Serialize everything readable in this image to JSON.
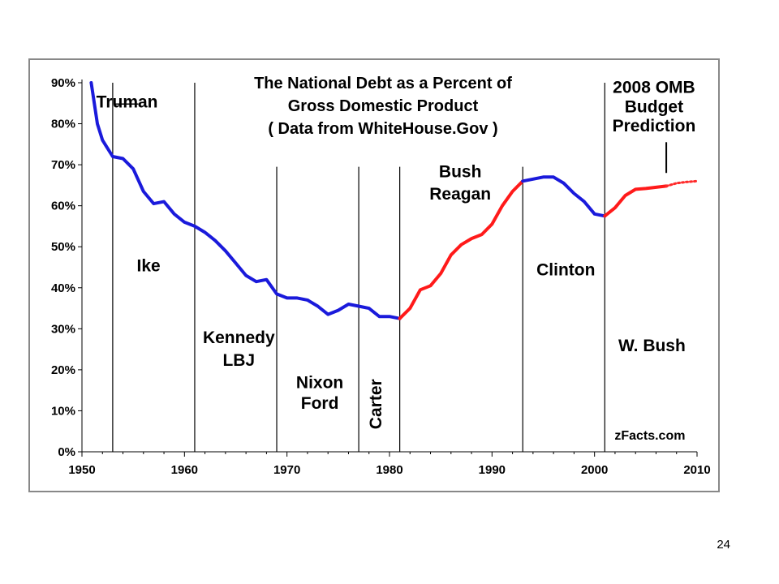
{
  "slide": {
    "page_number": "24"
  },
  "colors": {
    "actual_blue": "#1a1adb",
    "actual_red": "#ff1a1a",
    "projection_red": "#ff2a2a"
  },
  "chart_data": {
    "type": "line",
    "title_lines": [
      "The National Debt as a Percent of",
      "Gross Domestic Product",
      "( Data from WhiteHouse.Gov )"
    ],
    "xlim": [
      1950,
      2010
    ],
    "ylim": [
      0,
      90
    ],
    "x_ticks": [
      1950,
      1960,
      1970,
      1980,
      1990,
      2000,
      2010
    ],
    "y_ticks": [
      {
        "value": 0,
        "label": "0%"
      },
      {
        "value": 10,
        "label": "10%"
      },
      {
        "value": 20,
        "label": "20%"
      },
      {
        "value": 30,
        "label": "30%"
      },
      {
        "value": 40,
        "label": "40%"
      },
      {
        "value": 50,
        "label": "50%"
      },
      {
        "value": 60,
        "label": "60%"
      },
      {
        "value": 70,
        "label": "70%"
      },
      {
        "value": 80,
        "label": "80%"
      },
      {
        "value": 90,
        "label": "90%"
      }
    ],
    "grid": false,
    "series": [
      {
        "party": "democratic-blue",
        "color": "#1a1adb",
        "style": "solid",
        "x": [
          1950.9,
          1951.5,
          1952,
          1953,
          1954,
          1955,
          1956,
          1957,
          1958,
          1959,
          1960,
          1961,
          1962,
          1963,
          1964,
          1965,
          1966,
          1967,
          1968,
          1969,
          1970,
          1971,
          1972,
          1973,
          1974,
          1975,
          1976,
          1977,
          1978,
          1979,
          1980,
          1981
        ],
        "y": [
          90,
          80,
          76,
          72,
          71.5,
          69,
          63.5,
          60.5,
          61,
          58,
          56,
          55,
          53.5,
          51.5,
          49,
          46,
          43,
          41.5,
          42,
          38.5,
          37.5,
          37.5,
          37,
          35.5,
          33.5,
          34.5,
          36,
          35.5,
          35,
          33,
          33,
          32.5
        ]
      },
      {
        "party": "republican-red",
        "color": "#ff1a1a",
        "style": "solid",
        "x": [
          1981,
          1982,
          1983,
          1984,
          1985,
          1986,
          1987,
          1988,
          1989,
          1990,
          1991,
          1992,
          1993
        ],
        "y": [
          32.5,
          35,
          39.5,
          40.5,
          43.5,
          48,
          50.5,
          52,
          53,
          55.5,
          60,
          63.5,
          66
        ]
      },
      {
        "party": "democratic-blue",
        "color": "#1a1adb",
        "style": "solid",
        "x": [
          1993,
          1994,
          1995,
          1996,
          1997,
          1998,
          1999,
          2000,
          2001
        ],
        "y": [
          66,
          66.5,
          67,
          67,
          65.5,
          63,
          61,
          58,
          57.5
        ]
      },
      {
        "party": "republican-red",
        "color": "#ff1a1a",
        "style": "solid",
        "x": [
          2001,
          2002,
          2003,
          2004,
          2005,
          2006,
          2007
        ],
        "y": [
          57.5,
          59.5,
          62.5,
          64,
          64.2,
          64.5,
          64.8
        ]
      },
      {
        "party": "projection",
        "color": "#ff2a2a",
        "style": "dotted",
        "x": [
          2007,
          2008,
          2009,
          2010
        ],
        "y": [
          64.8,
          65.5,
          65.8,
          66
        ]
      }
    ],
    "term_dividers": [
      1953,
      1961,
      1969,
      1977,
      1981,
      1993,
      2001
    ],
    "president_labels": [
      {
        "text": "Truman",
        "x": 1954.4,
        "y": 84
      },
      {
        "text": "Ike",
        "x": 1956.5,
        "y": 44
      },
      {
        "text": "Kennedy",
        "x": 1965.3,
        "y": 26.5
      },
      {
        "text": "LBJ",
        "x": 1965.3,
        "y": 21
      },
      {
        "text": "Nixon",
        "x": 1973.2,
        "y": 15.5
      },
      {
        "text": "Ford",
        "x": 1973.2,
        "y": 10.5
      },
      {
        "text": "Carter",
        "x": 1979.2,
        "y": 5.5,
        "rotated": true
      },
      {
        "text": "Bush",
        "x": 1986.9,
        "y": 67
      },
      {
        "text": "Reagan",
        "x": 1986.9,
        "y": 61.5
      },
      {
        "text": "Clinton",
        "x": 1997.2,
        "y": 43
      },
      {
        "text": "W. Bush",
        "x": 2005.6,
        "y": 24.5
      }
    ],
    "annotations": [
      {
        "lines": [
          "2008 OMB",
          "Budget",
          "Prediction"
        ],
        "x": 2005.8,
        "y": [
          87.5,
          82.8,
          78.1
        ]
      },
      {
        "text": "zFacts.com",
        "x": 2005.4,
        "y": 3
      }
    ]
  }
}
